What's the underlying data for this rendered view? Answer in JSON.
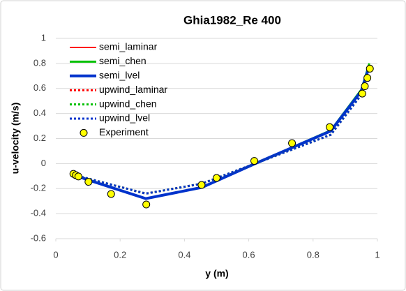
{
  "chart_data": {
    "type": "line",
    "title": "Ghia1982_Re 400",
    "x_label": "y (m)",
    "y_label": "u-velocity (m/s)",
    "xlim": [
      0,
      1
    ],
    "xticks": [
      0,
      0.2,
      0.4,
      0.6,
      0.8,
      1
    ],
    "ylim": [
      -0.6,
      1
    ],
    "yticks": [
      -0.6,
      -0.4,
      -0.2,
      0,
      0.2,
      0.4,
      0.6,
      0.8,
      1
    ],
    "grid": true,
    "legend": "upper left",
    "series": [
      {
        "name": "semi_laminar",
        "color": "#ff0000",
        "style": "solid",
        "width": 2,
        "x": [
          0.055,
          0.1,
          0.28,
          0.455,
          0.62,
          0.855,
          0.95,
          0.975
        ],
        "values": [
          -0.09,
          -0.13,
          -0.28,
          -0.19,
          0.0,
          0.26,
          0.58,
          0.79
        ]
      },
      {
        "name": "semi_chen",
        "color": "#00c000",
        "style": "solid",
        "width": 3,
        "x": [
          0.055,
          0.1,
          0.28,
          0.455,
          0.62,
          0.855,
          0.95,
          0.975
        ],
        "values": [
          -0.09,
          -0.13,
          -0.28,
          -0.19,
          0.0,
          0.265,
          0.59,
          0.8
        ]
      },
      {
        "name": "semi_lvel",
        "color": "#0033cc",
        "style": "solid",
        "width": 4,
        "x": [
          0.055,
          0.1,
          0.28,
          0.455,
          0.62,
          0.855,
          0.95,
          0.975
        ],
        "values": [
          -0.09,
          -0.13,
          -0.28,
          -0.19,
          0.0,
          0.26,
          0.58,
          0.78
        ]
      },
      {
        "name": "upwind_laminar",
        "color": "#ff0000",
        "style": "dotted",
        "width": 3,
        "x": [
          0.055,
          0.1,
          0.28,
          0.455,
          0.62,
          0.855,
          0.95,
          0.975
        ],
        "values": [
          -0.09,
          -0.12,
          -0.24,
          -0.16,
          0.0,
          0.23,
          0.55,
          0.77
        ]
      },
      {
        "name": "upwind_chen",
        "color": "#00c000",
        "style": "dotted",
        "width": 3,
        "x": [
          0.055,
          0.1,
          0.28,
          0.455,
          0.62,
          0.855,
          0.95,
          0.975
        ],
        "values": [
          -0.09,
          -0.12,
          -0.24,
          -0.16,
          0.0,
          0.23,
          0.55,
          0.77
        ]
      },
      {
        "name": "upwind_lvel",
        "color": "#0033cc",
        "style": "dotted",
        "width": 3,
        "x": [
          0.055,
          0.1,
          0.28,
          0.455,
          0.62,
          0.855,
          0.95,
          0.975
        ],
        "values": [
          -0.09,
          -0.12,
          -0.24,
          -0.16,
          0.0,
          0.23,
          0.55,
          0.76
        ]
      },
      {
        "name": "Experiment",
        "color": "#ffff00",
        "edgecolor": "#000000",
        "marker": "circle",
        "x": [
          0.0547,
          0.0625,
          0.0703,
          0.1016,
          0.1719,
          0.2813,
          0.4531,
          0.5,
          0.6172,
          0.7344,
          0.8516,
          0.9531,
          0.9609,
          0.9688,
          0.9766
        ],
        "values": [
          -0.082,
          -0.093,
          -0.103,
          -0.146,
          -0.243,
          -0.327,
          -0.171,
          -0.115,
          0.021,
          0.163,
          0.291,
          0.559,
          0.618,
          0.684,
          0.758
        ]
      }
    ]
  }
}
